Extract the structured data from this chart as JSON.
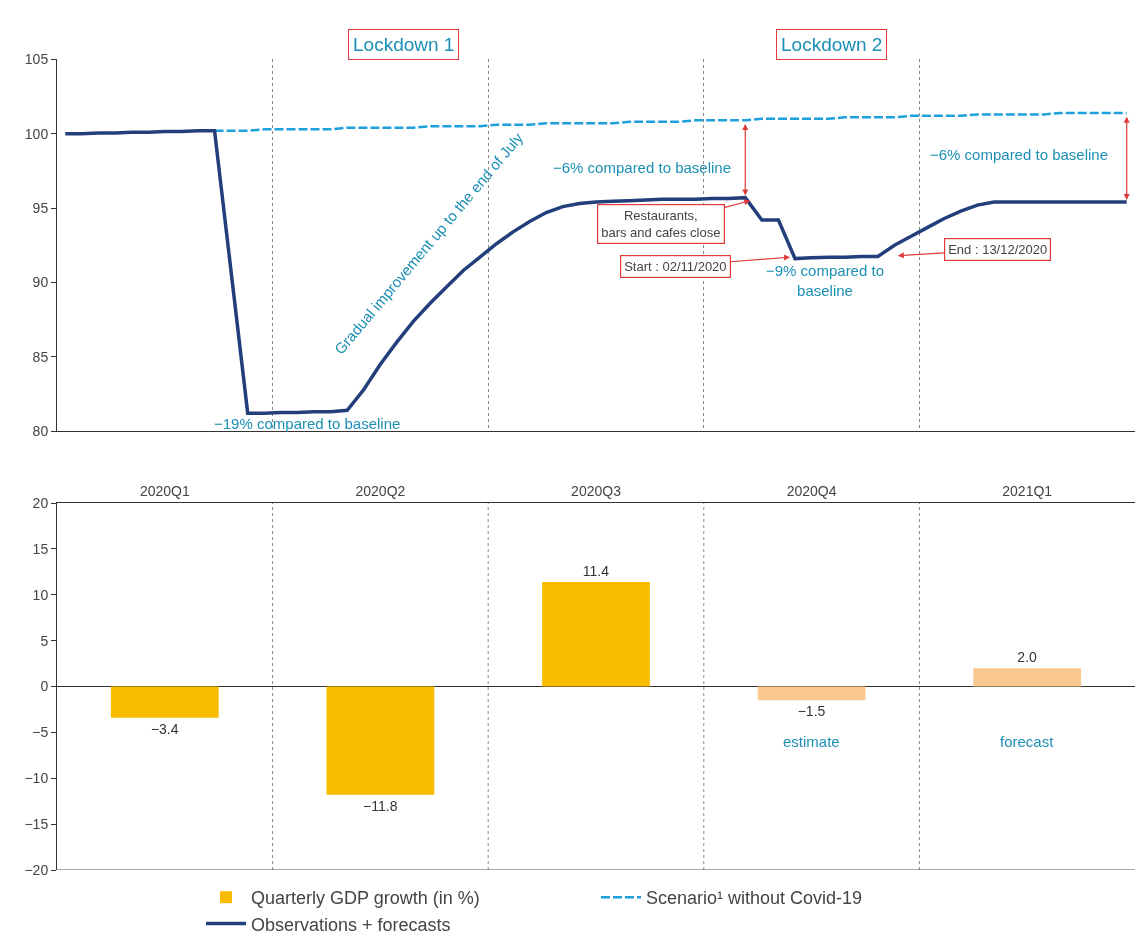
{
  "chart_data": [
    {
      "type": "line",
      "categories": [
        null,
        null,
        null,
        null,
        null,
        null,
        null,
        null,
        null,
        null,
        null,
        null,
        null,
        null,
        null,
        null,
        null,
        null,
        null,
        null,
        null,
        null,
        null,
        null,
        null,
        null,
        null,
        null,
        null,
        null,
        null,
        null,
        null,
        null,
        null,
        null,
        null,
        null,
        null,
        null,
        null,
        null,
        null,
        null,
        null,
        null,
        null,
        null,
        null,
        null,
        null,
        null,
        null,
        null,
        null,
        null,
        null,
        null,
        null,
        null,
        null,
        null,
        null,
        null,
        null
      ],
      "series": [
        {
          "name": "Scenario¹ without Covid-19",
          "color": "#1ea0dc",
          "line_style": "dashed",
          "values": [
            null,
            null,
            null,
            null,
            null,
            null,
            null,
            null,
            null,
            100.2,
            100.2,
            100.2,
            100.3,
            100.3,
            100.3,
            100.3,
            100.3,
            100.4,
            100.4,
            100.4,
            100.4,
            100.4,
            100.5,
            100.5,
            100.5,
            100.5,
            100.6,
            100.6,
            100.6,
            100.7,
            100.7,
            100.7,
            100.7,
            100.7,
            100.8,
            100.8,
            100.8,
            100.8,
            100.9,
            100.9,
            100.9,
            100.9,
            101.0,
            101.0,
            101.0,
            101.0,
            101.0,
            101.1,
            101.1,
            101.1,
            101.1,
            101.2,
            101.2,
            101.2,
            101.2,
            101.3,
            101.3,
            101.3,
            101.3,
            101.3,
            101.4,
            101.4,
            101.4,
            101.4,
            101.4
          ]
        },
        {
          "name": "Observations + forecasts",
          "color": "#233f7b",
          "line_style": "solid",
          "values": [
            100,
            100,
            100.05,
            100.05,
            100.1,
            100.1,
            100.15,
            100.15,
            100.2,
            100.2,
            90.7,
            81.2,
            81.2,
            81.25,
            81.25,
            81.3,
            81.3,
            81.4,
            82.8,
            84.5,
            86.0,
            87.4,
            88.6,
            89.7,
            90.8,
            91.7,
            92.6,
            93.4,
            94.1,
            94.7,
            95.1,
            95.3,
            95.4,
            95.45,
            95.5,
            95.55,
            95.6,
            95.6,
            95.6,
            95.65,
            95.65,
            95.7,
            94.2,
            94.2,
            91.6,
            91.65,
            91.7,
            91.7,
            91.75,
            91.75,
            92.5,
            93.1,
            93.7,
            94.3,
            94.8,
            95.2,
            95.4,
            95.4,
            95.4,
            95.4,
            95.4,
            95.4,
            95.4,
            95.4,
            95.4
          ]
        }
      ],
      "ylim": [
        80,
        105
      ],
      "yticks": [
        80,
        85,
        90,
        95,
        100,
        105
      ],
      "grid": "x",
      "legend": "bottom",
      "tick_labels": "y",
      "annotations": [
        "Lockdown 1",
        "Lockdown 2",
        "Gradual improvement up to the end of July",
        "−19% compared to baseline",
        "−6% compared to baseline",
        "−6% compared to baseline",
        "Restaurants,\nbars and cafes close",
        "Start : 02/11/2020",
        "End : 13/12/2020",
        "−9% compared to\nbaseline"
      ]
    },
    {
      "type": "bar",
      "categories": [
        "2020Q1",
        "2020Q2",
        "2020Q3",
        "2020Q4",
        "2021Q1"
      ],
      "series": [
        {
          "name": "Quarterly GDP growth (in %)",
          "color": "#f9bc00",
          "colors": [
            "#f9bc00",
            "#f9bc00",
            "#f9bc00",
            "#f9c98f",
            "#f9c98f"
          ],
          "values": [
            -3.4,
            -11.8,
            11.4,
            -1.5,
            2.0
          ],
          "value_labels": [
            "−3.4",
            "−11.8",
            "11.4",
            "−1.5",
            "2.0"
          ]
        }
      ],
      "ylim": [
        -20,
        20
      ],
      "yticks": [
        -20,
        -15,
        -10,
        -5,
        0,
        5,
        10,
        15,
        20
      ],
      "grid": "x",
      "legend": "bottom",
      "annotations": [
        "estimate",
        "forecast"
      ]
    }
  ]
}
